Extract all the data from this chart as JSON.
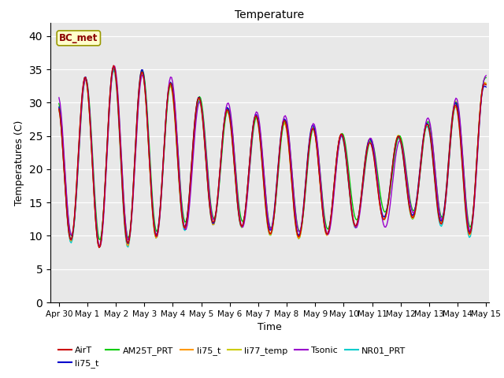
{
  "title": "Temperature",
  "xlabel": "Time",
  "ylabel": "Temperatures (C)",
  "ylim": [
    0,
    42
  ],
  "yticks": [
    0,
    5,
    10,
    15,
    20,
    25,
    30,
    35,
    40
  ],
  "annotation_text": "BC_met",
  "bg_color": "#e8e8e8",
  "fig_bg": "#ffffff",
  "series_colors": {
    "AirT": "#cc0000",
    "li75_t_blue": "#0000cc",
    "AM25T_PRT": "#00cc00",
    "li75_t_orange": "#ff9900",
    "li77_temp": "#cccc00",
    "Tsonic": "#9900cc",
    "NR01_PRT": "#00cccc"
  },
  "legend_entries": [
    {
      "label": "AirT",
      "color": "#cc0000"
    },
    {
      "label": "li75_t",
      "color": "#0000cc"
    },
    {
      "label": "AM25T_PRT",
      "color": "#00cc00"
    },
    {
      "label": "li75_t",
      "color": "#ff9900"
    },
    {
      "label": "li77_temp",
      "color": "#cccc00"
    },
    {
      "label": "Tsonic",
      "color": "#9900cc"
    },
    {
      "label": "NR01_PRT",
      "color": "#00cccc"
    }
  ],
  "x_tick_labels": [
    "Apr 30",
    "May 1",
    "May 2",
    "May 3",
    "May 4",
    "May 5",
    "May 6",
    "May 7",
    "May 8",
    "May 9",
    "May 10",
    "May 11",
    "May 12",
    "May 13",
    "May 14",
    "May 15"
  ],
  "num_days": 16,
  "points_per_day": 24
}
